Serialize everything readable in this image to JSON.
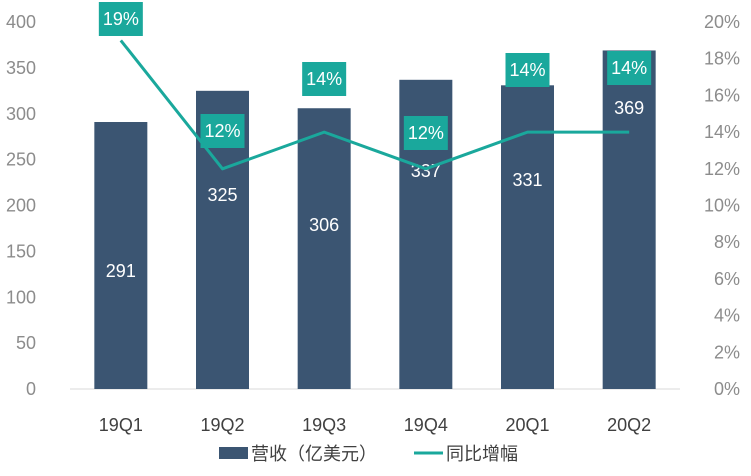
{
  "chart_data": {
    "type": "bar",
    "categories": [
      "19Q1",
      "19Q2",
      "19Q3",
      "19Q4",
      "20Q1",
      "20Q2"
    ],
    "series": [
      {
        "name": "营收（亿美元）",
        "type": "bar",
        "axis": "left",
        "values": [
          291,
          325,
          306,
          337,
          331,
          369
        ],
        "value_labels": [
          "291",
          "325",
          "306",
          "337",
          "331",
          "369"
        ]
      },
      {
        "name": "同比增幅",
        "type": "line",
        "axis": "right",
        "values": [
          0.19,
          0.12,
          0.14,
          0.12,
          0.14,
          0.14
        ],
        "value_labels": [
          "19%",
          "12%",
          "14%",
          "12%",
          "14%",
          "14%"
        ]
      }
    ],
    "left_axis": {
      "ylim": [
        0,
        400
      ],
      "ticks": [
        "0",
        "50",
        "100",
        "150",
        "200",
        "250",
        "300",
        "350",
        "400"
      ]
    },
    "right_axis": {
      "ylim": [
        0,
        0.2
      ],
      "ticks": [
        "0%",
        "2%",
        "4%",
        "6%",
        "8%",
        "10%",
        "12%",
        "14%",
        "16%",
        "18%",
        "20%"
      ]
    },
    "grid": false,
    "legend_position": "bottom",
    "colors": {
      "bar": "#3b5572",
      "line": "#1aa89c",
      "label_box": "#1aa89c"
    }
  }
}
